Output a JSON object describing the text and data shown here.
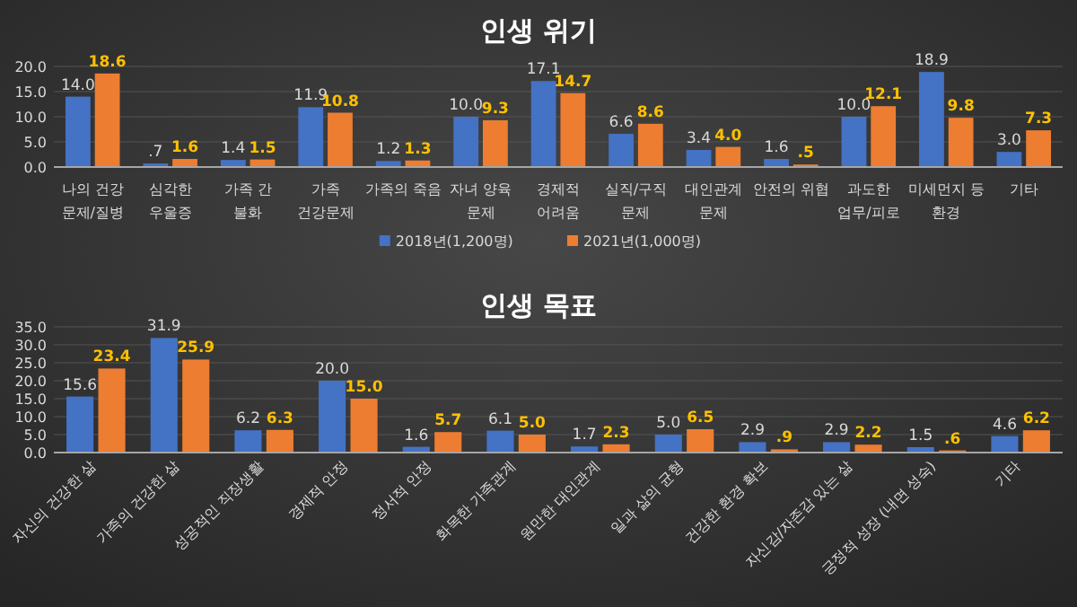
{
  "chart_data": [
    {
      "type": "bar",
      "title": "인생 위기",
      "categories": [
        "나의 건강\n문제/질병",
        "심각한\n우울증",
        "가족 간\n불화",
        "가족\n건강문제",
        "가족의 죽음",
        "자녀 양육\n문제",
        "경제적\n어려움",
        "실직/구직\n문제",
        "대인관계\n문제",
        "안전의 위협",
        "과도한\n업무/피로",
        "미세먼지 등\n환경",
        "기타"
      ],
      "series": [
        {
          "name": "2018년(1,200명)",
          "color": "#4472c4",
          "values": [
            14.0,
            0.7,
            1.4,
            11.9,
            1.2,
            10.0,
            17.1,
            6.6,
            3.4,
            1.6,
            10.0,
            18.9,
            3.0
          ],
          "value_labels": [
            "14.0",
            ".7",
            "1.4",
            "11.9",
            "1.2",
            "10.0",
            "17.1",
            "6.6",
            "3.4",
            "1.6",
            "10.0",
            "18.9",
            "3.0"
          ]
        },
        {
          "name": "2021년(1,000명)",
          "color": "#ed7d31",
          "values": [
            18.6,
            1.6,
            1.5,
            10.8,
            1.3,
            9.3,
            14.7,
            8.6,
            4.0,
            0.5,
            12.1,
            9.8,
            7.3
          ],
          "value_labels": [
            "18.6",
            "1.6",
            "1.5",
            "10.8",
            "1.3",
            "9.3",
            "14.7",
            "8.6",
            "4.0",
            ".5",
            "12.1",
            "9.8",
            "7.3"
          ]
        }
      ],
      "ylim": [
        0,
        20
      ],
      "yticks": [
        {
          "value": 0,
          "label": "0.0"
        },
        {
          "value": 5,
          "label": "5.0"
        },
        {
          "value": 10,
          "label": "10.0"
        },
        {
          "value": 15,
          "label": "15.0"
        },
        {
          "value": 20,
          "label": "20.0"
        }
      ],
      "grid": "y",
      "legend": "bottom"
    },
    {
      "type": "bar",
      "title": "인생 목표",
      "categories": [
        "자신의 건강한 삶",
        "가족의 건강한 삶",
        "성공적인 직장생활",
        "경제적 안정",
        "정서적 안정",
        "화목한 가족관계",
        "원만한 대인관계",
        "일과 삶의 균형",
        "건강한 환경 확보",
        "자신감/자존감 있는 삶",
        "긍정적 성장 (내면 성숙)",
        "기타"
      ],
      "series": [
        {
          "color": "#4472c4",
          "values": [
            15.6,
            31.9,
            6.2,
            20.0,
            1.6,
            6.1,
            1.7,
            5.0,
            2.9,
            2.9,
            1.5,
            4.6
          ],
          "value_labels": [
            "15.6",
            "31.9",
            "6.2",
            "20.0",
            "1.6",
            "6.1",
            "1.7",
            "5.0",
            "2.9",
            "2.9",
            "1.5",
            "4.6"
          ]
        },
        {
          "color": "#ed7d31",
          "values": [
            23.4,
            25.9,
            6.3,
            15.0,
            5.7,
            5.0,
            2.3,
            6.5,
            0.9,
            2.2,
            0.6,
            6.2
          ],
          "value_labels": [
            "23.4",
            "25.9",
            "6.3",
            "15.0",
            "5.7",
            "5.0",
            "2.3",
            "6.5",
            ".9",
            "2.2",
            ".6",
            "6.2"
          ]
        }
      ],
      "ylim": [
        0,
        35
      ],
      "yticks": [
        {
          "value": 0,
          "label": "0.0"
        },
        {
          "value": 5,
          "label": "5.0"
        },
        {
          "value": 10,
          "label": "10.0"
        },
        {
          "value": 15,
          "label": "15.0"
        },
        {
          "value": 20,
          "label": "20.0"
        },
        {
          "value": 25,
          "label": "25.0"
        },
        {
          "value": 30,
          "label": "30.0"
        },
        {
          "value": 35,
          "label": "35.0"
        }
      ],
      "grid": "y",
      "legend": false
    }
  ]
}
